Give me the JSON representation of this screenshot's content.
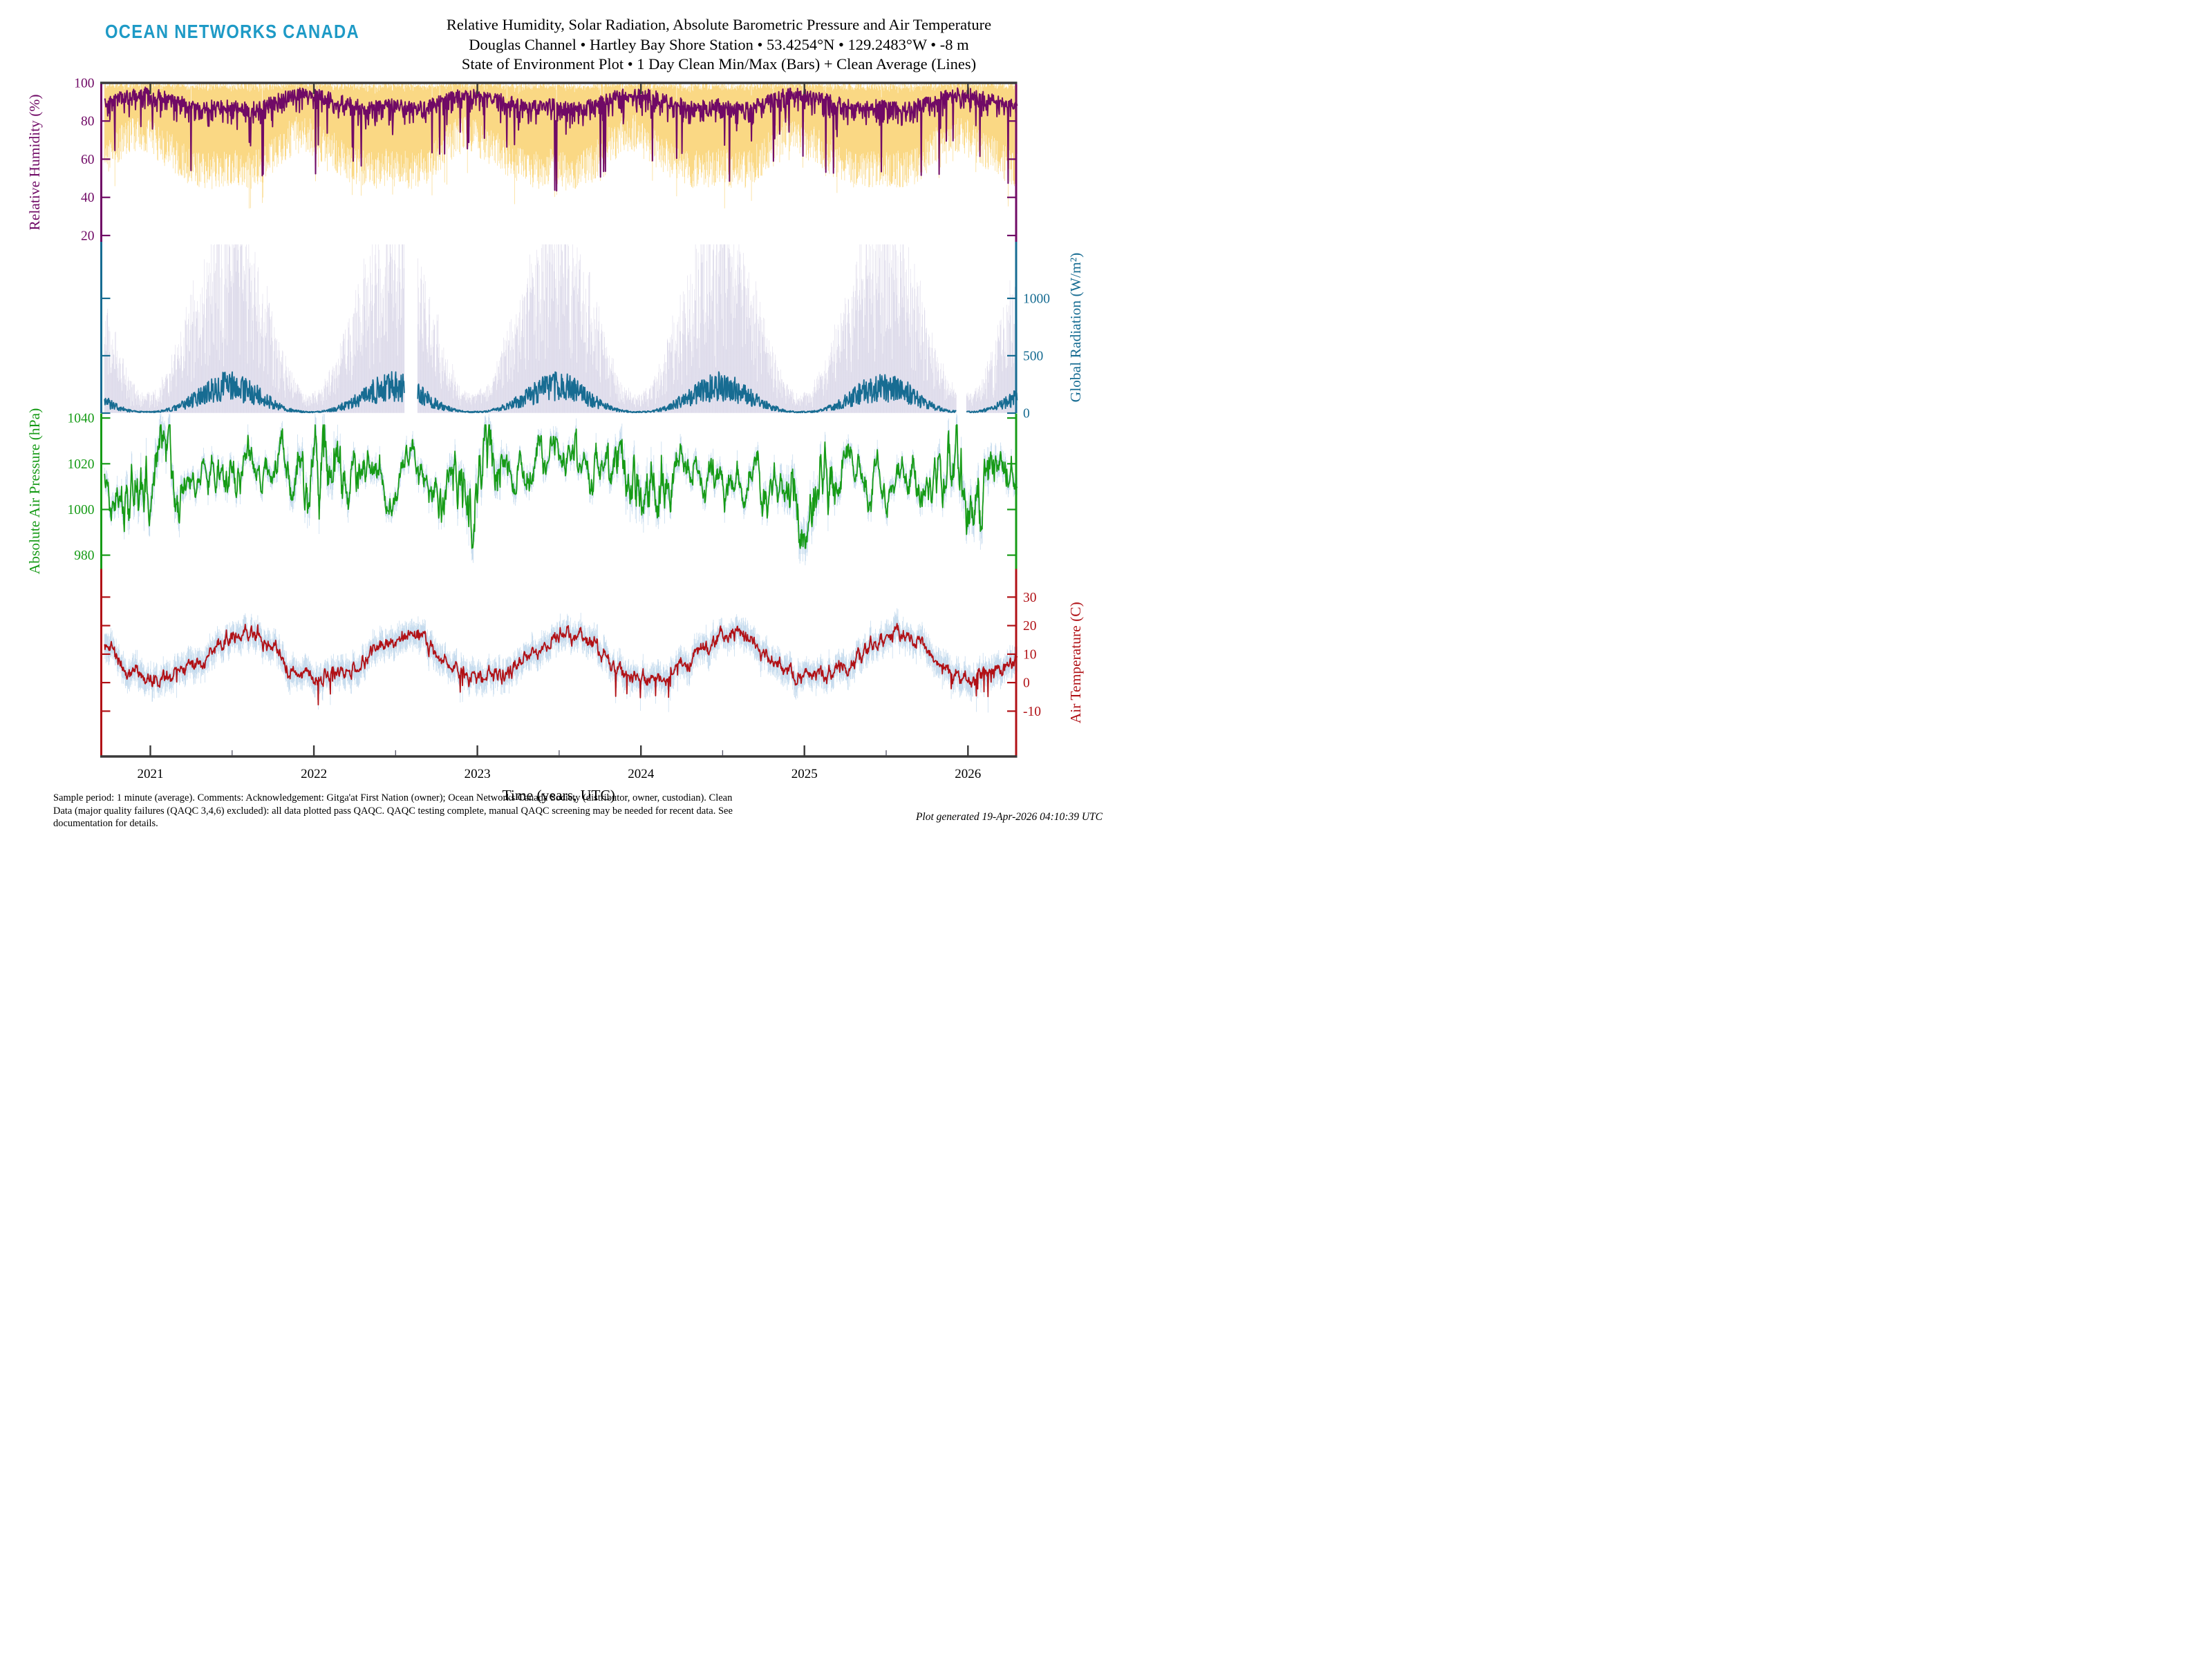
{
  "page": {
    "bg": "#FFFFFF"
  },
  "header": {
    "logo": "OCEAN NETWORKS CANADA",
    "logo_color": "#1E9AC6",
    "title_lines": [
      "Relative Humidity, Solar Radiation, Absolute Barometric Pressure and Air Temperature",
      "Douglas Channel • Hartley Bay Shore Station • 53.4254°N • 129.2483°W • -8 m",
      "State of Environment Plot • 1 Day Clean Min/Max (Bars) + Clean Average (Lines)"
    ]
  },
  "footer": {
    "lines": [
      "Sample period: 1 minute (average). Comments: Acknowledgement: Gitga'at First Nation (owner); Ocean Networks Canada Society (distributor, owner, custodian). Clean",
      "Data (major quality failures (QAQC 3,4,6) excluded): all data plotted pass QAQC. QAQC testing complete, manual QAQC screening may be needed for recent data. See",
      "documentation for details."
    ],
    "generated": "Plot generated 19-Apr-2026 04:10:39 UTC"
  },
  "chart_data": {
    "type": "time-series, 4 stacked panels: 1-day clean min/max bars + clean average line",
    "frame_color": "#3A3A3A",
    "seed": 20260419,
    "data_start": 2020.72,
    "data_end": 2026.3,
    "time_axis": {
      "label": "Time (years, UTC)",
      "year_ticks": [
        2021,
        2022,
        2023,
        2024,
        2025,
        2026
      ],
      "minor_ticks": [
        2021.5,
        2022.5,
        2023.5,
        2024.5,
        2025.5
      ],
      "view_start": 2020.7,
      "view_end": 2026.295
    },
    "panels": [
      {
        "name": "relative-humidity",
        "kind": "humidity",
        "axis_label": "Relative Humidity (%)",
        "label_side": "left",
        "tick_label_side": "left",
        "ticks": [
          100,
          80,
          60,
          40,
          20
        ],
        "ylim": [
          16.7,
          100
        ],
        "line_color": "#700A66",
        "bar_color": "#FAD884",
        "monthly": {
          "avg": [
            94,
            92,
            90,
            88,
            88,
            89,
            88,
            87,
            89,
            92,
            94,
            95
          ],
          "lo": [
            68,
            64,
            58,
            55,
            54,
            56,
            55,
            54,
            58,
            66,
            72,
            74
          ],
          "hi": [
            100,
            100,
            100,
            100,
            100,
            100,
            100,
            100,
            100,
            100,
            100,
            100
          ]
        },
        "texture": {
          "jit": 6,
          "dip_prob": 0.05,
          "dip_max": 46,
          "base_dip": 10
        },
        "gaps": []
      },
      {
        "name": "global-radiation",
        "kind": "radiation",
        "axis_label": "Global Radiation (W/m²)",
        "label_side": "right",
        "tick_label_side": "right",
        "ticks": [
          1000,
          500,
          0
        ],
        "ylim": [
          0,
          1493
        ],
        "line_color": "#176C92",
        "bar_color": "#DBD8E9",
        "monthly": {
          "hi": [
            160,
            340,
            640,
            950,
            1200,
            1350,
            1330,
            1120,
            820,
            480,
            220,
            120
          ],
          "avg": [
            14,
            38,
            90,
            165,
            235,
            285,
            270,
            215,
            135,
            65,
            24,
            11
          ]
        },
        "texture": {
          "cloud_min": 0.3,
          "cloud_pow": 0.6,
          "hi_jit": 0.25,
          "avg_min": 0.35,
          "avg_spread": 0.95
        },
        "gaps": [
          [
            2022.555,
            2022.635
          ],
          [
            2025.93,
            2025.99
          ]
        ]
      },
      {
        "name": "absolute-air-pressure",
        "kind": "pressure",
        "axis_label": "Absolute Air Pressure (hPa)",
        "label_side": "left",
        "tick_label_side": "left",
        "ticks": [
          1040,
          1020,
          1000,
          980
        ],
        "ylim": [
          974,
          1042
        ],
        "line_color": "#169B16",
        "bar_color": "#C7DCEE",
        "monthly": {
          "avg": [
            1013,
            1014,
            1015,
            1016,
            1016,
            1015,
            1016,
            1015,
            1014,
            1012,
            1011,
            1012
          ]
        },
        "texture": {
          "sd": 5.5,
          "winter_amp": 0.8,
          "bar_base": 2.5,
          "bar_spread": 4.5,
          "clamp": [
            983,
            1037
          ]
        },
        "gaps": []
      },
      {
        "name": "air-temperature",
        "kind": "temperature",
        "axis_label": "Air Temperature (C)",
        "label_side": "right",
        "tick_label_side": "right",
        "ticks": [
          30,
          20,
          10,
          0,
          -10
        ],
        "ylim": [
          -25.9,
          39.9
        ],
        "line_color": "#B11116",
        "bar_color": "#C7DCEE",
        "monthly": {
          "avg": [
            1.5,
            2.5,
            4.5,
            7.5,
            11,
            14,
            16.5,
            17,
            13.5,
            8.5,
            4,
            1.5
          ]
        },
        "texture": {
          "ar": 0.72,
          "sd": 4,
          "snap_prob": 0.02,
          "snap_mag": 6,
          "bar_base": 1.6,
          "bar_spread": 4.2
        },
        "gaps": []
      }
    ]
  }
}
